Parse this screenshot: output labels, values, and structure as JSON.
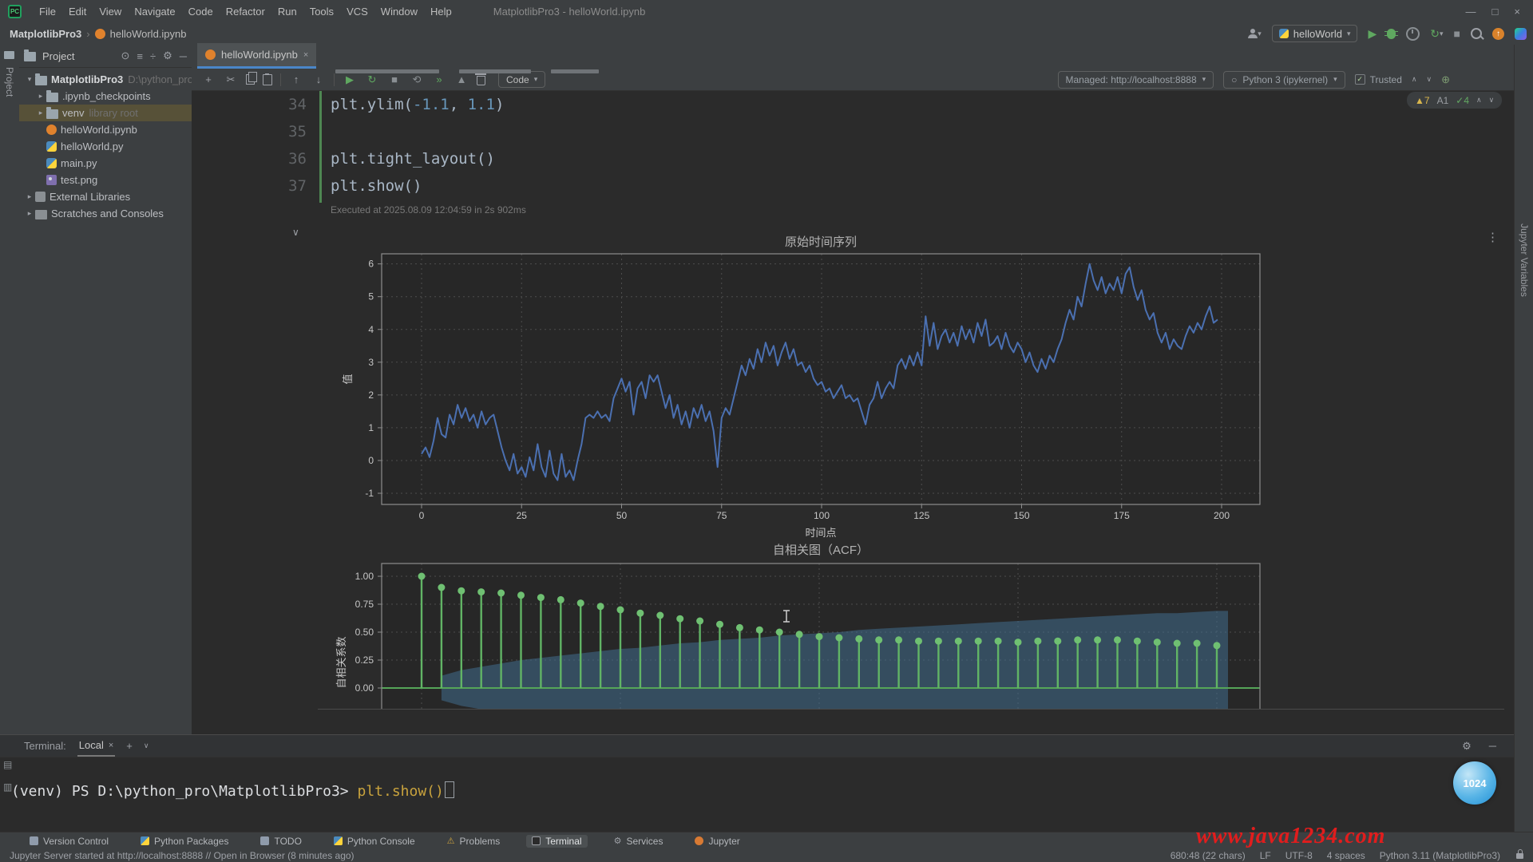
{
  "menu_bar": {
    "items": [
      "File",
      "Edit",
      "View",
      "Navigate",
      "Code",
      "Refactor",
      "Run",
      "Tools",
      "VCS",
      "Window",
      "Help"
    ],
    "title": "MatplotlibPro3 - helloWorld.ipynb",
    "controls": [
      {
        "name": "minimize",
        "glyph": "—"
      },
      {
        "name": "maximize",
        "glyph": "□"
      },
      {
        "name": "close",
        "glyph": "×"
      }
    ]
  },
  "navbar": {
    "project": "MatplotlibPro3",
    "separator": "›",
    "file": "helloWorld.ipynb",
    "run_config": "helloWorld"
  },
  "left_stripe": {
    "project_label": "Project"
  },
  "right_stripe": {
    "label": "Jupyter Variables"
  },
  "project_panel": {
    "header": "Project",
    "header_icons": [
      {
        "name": "locate-icon",
        "glyph": "⊙"
      },
      {
        "name": "expand-icon",
        "glyph": "≡"
      },
      {
        "name": "collapse-all-icon",
        "glyph": "÷"
      },
      {
        "name": "settings-icon",
        "glyph": "⚙"
      },
      {
        "name": "hide-icon",
        "glyph": "─"
      }
    ],
    "tree": [
      {
        "label": "MatplotlibPro3",
        "hint": "D:\\python_pro",
        "icon": "folder",
        "arrow": "▾",
        "bold": true,
        "indent": 0,
        "selected": false
      },
      {
        "label": ".ipynb_checkpoints",
        "hint": "",
        "icon": "folder",
        "arrow": "▸",
        "bold": false,
        "indent": 1,
        "selected": false
      },
      {
        "label": "venv",
        "hint": "library root",
        "icon": "folder",
        "arrow": "▸",
        "bold": false,
        "indent": 1,
        "selected": true
      },
      {
        "label": "helloWorld.ipynb",
        "hint": "",
        "icon": "ipynb",
        "arrow": "",
        "bold": false,
        "indent": 1,
        "selected": false
      },
      {
        "label": "helloWorld.py",
        "hint": "",
        "icon": "py",
        "arrow": "",
        "bold": false,
        "indent": 1,
        "selected": false
      },
      {
        "label": "main.py",
        "hint": "",
        "icon": "py",
        "arrow": "",
        "bold": false,
        "indent": 1,
        "selected": false
      },
      {
        "label": "test.png",
        "hint": "",
        "icon": "img",
        "arrow": "",
        "bold": false,
        "indent": 1,
        "selected": false
      },
      {
        "label": "External Libraries",
        "hint": "",
        "icon": "lib",
        "arrow": "▸",
        "bold": false,
        "indent": 0,
        "selected": false
      },
      {
        "label": "Scratches and Consoles",
        "hint": "",
        "icon": "scratch",
        "arrow": "▸",
        "bold": false,
        "indent": 0,
        "selected": false
      }
    ]
  },
  "editor": {
    "tab": "helloWorld.ipynb",
    "nb_toolbar_icons": [
      {
        "name": "add-cell-icon",
        "glyph": "+"
      },
      {
        "name": "cut-cell-icon",
        "glyph": "✂"
      },
      {
        "name": "copy-cell-icon",
        "glyph": "css-copy"
      },
      {
        "name": "paste-cell-icon",
        "glyph": "css-paste"
      },
      {
        "name": "separator",
        "glyph": ""
      },
      {
        "name": "move-cell-up-icon",
        "glyph": "↑"
      },
      {
        "name": "move-cell-down-icon",
        "glyph": "↓"
      },
      {
        "name": "separator",
        "glyph": ""
      },
      {
        "name": "run-cell-icon",
        "glyph": "▶",
        "color": "#5fa860"
      },
      {
        "name": "run-all-icon",
        "glyph": "↻",
        "color": "#5fa860"
      },
      {
        "name": "stop-cell-icon",
        "glyph": "■",
        "color": "#8a8f93"
      },
      {
        "name": "restart-kernel-icon",
        "glyph": "⟲",
        "color": "#8a8f93"
      },
      {
        "name": "run-all-below-icon",
        "glyph": "»",
        "color": "#5fa860"
      },
      {
        "name": "interrupt-kernel-icon",
        "glyph": "▲",
        "color": "#8a8f93"
      },
      {
        "name": "delete-cell-icon",
        "glyph": "css-trash"
      }
    ],
    "cell_type_dropdown": "Code",
    "server_box": "Managed: http://localhost:8888",
    "kernel_box": "Python 3 (ipykernel)",
    "trusted_label": "Trusted",
    "inspections": {
      "warnings": "7",
      "weak": "1",
      "passed": "4"
    },
    "code": [
      {
        "num": "34",
        "segs": [
          [
            "plt.ylim(",
            "p"
          ],
          [
            "-1.1",
            "n"
          ],
          [
            ", ",
            "p"
          ],
          [
            "1.1",
            "n"
          ],
          [
            ")",
            "p"
          ]
        ]
      },
      {
        "num": "35",
        "segs": []
      },
      {
        "num": "36",
        "segs": [
          [
            "plt.tight_layout()",
            "p"
          ]
        ]
      },
      {
        "num": "37",
        "segs": [
          [
            "plt.show()",
            "p"
          ]
        ]
      }
    ],
    "executed_note": "Executed at 2025.08.09 12:04:59 in 2s 902ms"
  },
  "chart_data": [
    {
      "type": "line",
      "title": "原始时间序列",
      "xlabel": "时间点",
      "ylabel": "值",
      "xticks": [
        0,
        25,
        50,
        75,
        100,
        125,
        150,
        175,
        200
      ],
      "yticks": [
        -1,
        0,
        1,
        2,
        3,
        4,
        5,
        6
      ],
      "xlim": [
        -10,
        210
      ],
      "ylim": [
        -1.35,
        6.35
      ],
      "grid": true,
      "line_color": "#4b70b1",
      "values": [
        0.2,
        0.4,
        0.1,
        0.6,
        1.3,
        0.8,
        0.7,
        1.4,
        1.1,
        1.7,
        1.3,
        1.6,
        1.2,
        1.4,
        1.0,
        1.5,
        1.1,
        1.3,
        1.4,
        0.9,
        0.4,
        0.0,
        -0.3,
        0.2,
        -0.4,
        -0.2,
        -0.5,
        0.1,
        -0.3,
        0.5,
        -0.2,
        -0.5,
        0.3,
        -0.4,
        -0.6,
        0.2,
        -0.5,
        -0.3,
        -0.6,
        0.0,
        0.5,
        1.3,
        1.4,
        1.3,
        1.5,
        1.3,
        1.4,
        1.2,
        1.9,
        2.2,
        2.5,
        2.1,
        2.4,
        1.4,
        2.2,
        2.4,
        1.9,
        2.6,
        2.4,
        2.6,
        2.1,
        1.6,
        2.0,
        1.3,
        1.7,
        1.1,
        1.5,
        1.0,
        1.6,
        1.3,
        1.7,
        1.2,
        1.5,
        0.9,
        -0.2,
        1.3,
        1.6,
        1.4,
        1.9,
        2.4,
        2.9,
        2.6,
        3.1,
        2.8,
        3.4,
        3.0,
        3.6,
        3.2,
        3.5,
        2.9,
        3.3,
        3.6,
        3.1,
        3.4,
        2.9,
        3.0,
        2.7,
        2.9,
        2.5,
        2.3,
        2.4,
        2.1,
        2.2,
        1.9,
        2.1,
        2.3,
        1.9,
        2.0,
        1.8,
        1.9,
        1.5,
        1.1,
        1.7,
        1.9,
        2.4,
        1.9,
        2.2,
        2.4,
        2.2,
        2.9,
        3.1,
        2.8,
        3.2,
        2.9,
        3.3,
        2.9,
        4.4,
        3.5,
        4.2,
        3.4,
        3.8,
        4.0,
        3.6,
        3.9,
        3.5,
        4.1,
        3.7,
        4.0,
        3.6,
        4.2,
        3.8,
        4.3,
        3.5,
        3.6,
        3.8,
        3.4,
        3.9,
        3.5,
        3.3,
        3.6,
        3.4,
        3.0,
        3.3,
        2.9,
        2.7,
        3.1,
        2.8,
        3.2,
        3.0,
        3.4,
        3.7,
        4.2,
        4.6,
        4.3,
        5.0,
        4.7,
        5.4,
        6.0,
        5.5,
        5.2,
        5.6,
        5.1,
        5.4,
        5.2,
        5.6,
        5.1,
        5.7,
        5.9,
        5.3,
        4.9,
        5.2,
        4.6,
        4.3,
        4.5,
        3.9,
        3.6,
        3.9,
        3.4,
        3.7,
        3.5,
        3.4,
        3.8,
        4.1,
        3.9,
        4.2,
        4.0,
        4.4,
        4.7,
        4.2,
        4.3
      ]
    },
    {
      "type": "stem",
      "title": "自相关图（ACF）",
      "ylabel": "自相关系数",
      "yticks": [
        0.0,
        0.25,
        0.5,
        0.75,
        1.0
      ],
      "ytick_labels": [
        "0.00",
        "0.25",
        "0.50",
        "0.75",
        "1.00"
      ],
      "grid": true,
      "stem_color": "#61b465",
      "marker_color": "#6fc072",
      "zero_line_color": "#55a558",
      "band_color": "rgba(66,110,142,0.55)",
      "acf": [
        1.0,
        0.9,
        0.87,
        0.86,
        0.85,
        0.83,
        0.81,
        0.79,
        0.76,
        0.73,
        0.7,
        0.67,
        0.65,
        0.62,
        0.6,
        0.57,
        0.54,
        0.52,
        0.5,
        0.48,
        0.46,
        0.45,
        0.44,
        0.43,
        0.43,
        0.42,
        0.42,
        0.42,
        0.42,
        0.42,
        0.41,
        0.42,
        0.42,
        0.43,
        0.43,
        0.43,
        0.42,
        0.41,
        0.4,
        0.4,
        0.38
      ],
      "conf_upper": [
        0,
        0.11,
        0.16,
        0.19,
        0.22,
        0.25,
        0.27,
        0.29,
        0.31,
        0.33,
        0.35,
        0.36,
        0.38,
        0.4,
        0.41,
        0.43,
        0.44,
        0.45,
        0.47,
        0.48,
        0.49,
        0.5,
        0.52,
        0.53,
        0.54,
        0.55,
        0.56,
        0.57,
        0.58,
        0.59,
        0.6,
        0.61,
        0.62,
        0.63,
        0.64,
        0.65,
        0.66,
        0.67,
        0.67,
        0.68,
        0.69
      ]
    }
  ],
  "terminal": {
    "label": "Terminal:",
    "tab": "Local",
    "prompt": "(venv) PS D:\\python_pro\\MatplotlibPro3> ",
    "command": "plt.show()",
    "badge": "1024"
  },
  "bottom_bar": {
    "items": [
      {
        "label": "Version Control",
        "icon": "vc",
        "active": false
      },
      {
        "label": "Python Packages",
        "icon": "py",
        "active": false
      },
      {
        "label": "TODO",
        "icon": "todo",
        "active": false
      },
      {
        "label": "Python Console",
        "icon": "py",
        "active": false
      },
      {
        "label": "Problems",
        "icon": "problems",
        "active": false
      },
      {
        "label": "Terminal",
        "icon": "terminal",
        "active": true
      },
      {
        "label": "Services",
        "icon": "services",
        "active": false
      },
      {
        "label": "Jupyter",
        "icon": "jupyter",
        "active": false
      }
    ]
  },
  "status_bar": {
    "message": "Jupyter Server started at http://localhost:8888 // Open in Browser (8 minutes ago)",
    "caret": "680:48 (22 chars)",
    "line_ending": "LF",
    "encoding": "UTF-8",
    "indent": "4 spaces",
    "interpreter": "Python 3.11 (MatplotlibPro3)"
  },
  "watermark": "www.java1234.com"
}
